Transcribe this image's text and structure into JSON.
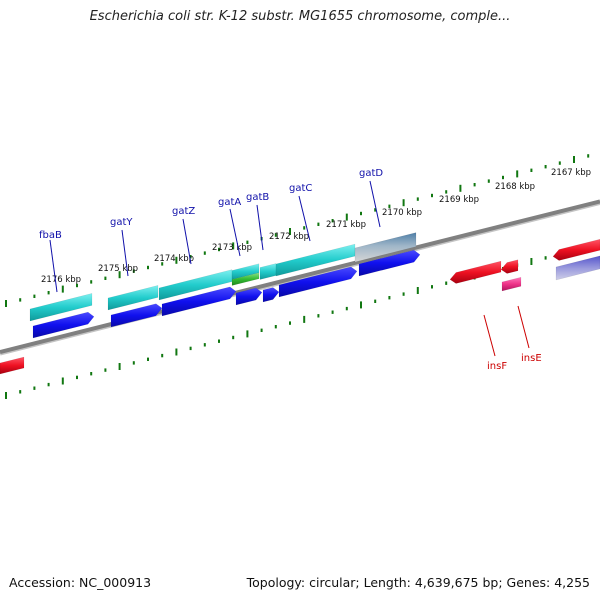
{
  "title": "Escherichia coli str. K-12 substr. MG1655 chromosome, comple...",
  "footer": {
    "accession": "Accession: NC_000913",
    "topology": "Topology: circular; Length: 4,639,675 bp; Genes: 4,255"
  },
  "colors": {
    "backbone": "#808080",
    "tick": "#117711",
    "forward_gene": "#22cccc",
    "reverse_gene": "#1010ee",
    "rna": "#33bb33",
    "gray_gene": "#5f8fb5",
    "insertion": "#ee1122",
    "insertion_pink": "#ee3388",
    "gene_label": "#1111aa",
    "insertion_label": "#cc0000"
  },
  "scale_labels": [
    {
      "text": "2176 kbp"
    },
    {
      "text": "2175 kbp"
    },
    {
      "text": "2174 kbp"
    },
    {
      "text": "2173 kbp"
    },
    {
      "text": "2172 kbp"
    },
    {
      "text": "2171 kbp"
    },
    {
      "text": "2170 kbp"
    },
    {
      "text": "2169 kbp"
    },
    {
      "text": "2168 kbp"
    },
    {
      "text": "2167 kbp"
    }
  ],
  "gene_labels": [
    {
      "text": "fbaB",
      "kind": "gene"
    },
    {
      "text": "gatY",
      "kind": "gene"
    },
    {
      "text": "gatZ",
      "kind": "gene"
    },
    {
      "text": "gatA",
      "kind": "gene"
    },
    {
      "text": "gatB",
      "kind": "gene"
    },
    {
      "text": "gatC",
      "kind": "gene"
    },
    {
      "text": "gatD",
      "kind": "gene"
    },
    {
      "text": "insF",
      "kind": "insertion"
    },
    {
      "text": "insE",
      "kind": "insertion"
    }
  ]
}
